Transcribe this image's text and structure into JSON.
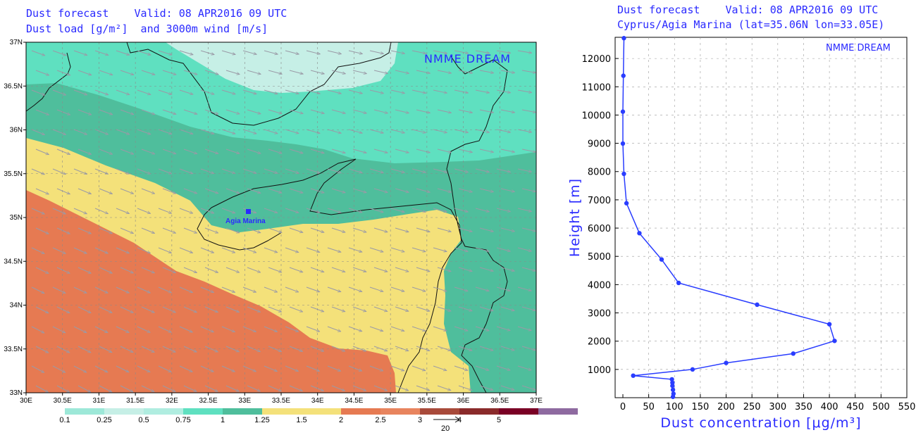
{
  "left": {
    "title1": "Dust forecast    Valid: 08 APR2016 09 UTC",
    "title2": "Dust load [g/m²]  and 3000m wind [m/s]",
    "brand": "NMME DREAM",
    "x_ticks": [
      "30E",
      "30.5E",
      "31E",
      "31.5E",
      "32E",
      "32.5E",
      "33E",
      "33.5E",
      "34E",
      "34.5E",
      "35E",
      "35.5E",
      "36E",
      "36.5E",
      "37E"
    ],
    "y_ticks": [
      "33N",
      "33.5N",
      "34N",
      "34.5N",
      "35N",
      "35.5N",
      "36N",
      "36.5N",
      "37N"
    ],
    "site_label": "Agia Marina",
    "legend_labels": [
      "0.1",
      "0.25",
      "0.5",
      "0.75",
      "1",
      "1.25",
      "1.5",
      "2",
      "2.5",
      "3",
      "4",
      "5"
    ],
    "legend_colors": [
      "#9de8d8",
      "#c6efe6",
      "#b0ede0",
      "#5fe0c0",
      "#4fbe9c",
      "#f4e17a",
      "#f4e17a",
      "#e67a52",
      "#e8845e",
      "#a84a3a",
      "#8a2a2a",
      "#7a0025",
      "#8e6aa0"
    ],
    "wind_ref_label": "20",
    "map_colors": {
      "c050": "#c6efe6",
      "c075": "#5fe0c0",
      "c100": "#4fbe9c",
      "c150": "#f4e17a",
      "c200": "#e67a52"
    }
  },
  "right": {
    "title1": "Dust forecast    Valid: 08 APR2016 09 UTC",
    "title2": "Cyprus/Agia Marina (lat=35.06N lon=33.05E)",
    "brand": "NMME DREAM"
  },
  "chart_data": {
    "type": "line",
    "title": "Dust forecast Valid: 08 APR2016 09 UTC",
    "subtitle": "Cyprus/Agia Marina (lat=35.06N lon=33.05E)",
    "xlabel": "Dust concentration [μg/m³]",
    "ylabel": "Height [m]",
    "xlim": [
      -15,
      550
    ],
    "ylim": [
      0,
      12750
    ],
    "x_ticks": [
      0,
      50,
      100,
      150,
      200,
      250,
      300,
      350,
      400,
      450,
      500,
      550
    ],
    "y_ticks": [
      1000,
      2000,
      3000,
      4000,
      5000,
      6000,
      7000,
      8000,
      9000,
      10000,
      11000,
      12000
    ],
    "grid": true,
    "color": "#2a3dff",
    "series": [
      {
        "x": [
          97,
          98,
          97,
          96,
          96,
          95,
          20,
          135,
          200,
          330,
          410,
          400,
          260,
          108,
          75,
          32,
          7,
          2,
          0,
          0,
          1,
          2
        ],
        "y": [
          30,
          140,
          280,
          420,
          530,
          650,
          780,
          1000,
          1230,
          1560,
          2010,
          2600,
          3290,
          4060,
          4890,
          5820,
          6880,
          7920,
          8990,
          10120,
          11390,
          12720
        ]
      }
    ]
  }
}
